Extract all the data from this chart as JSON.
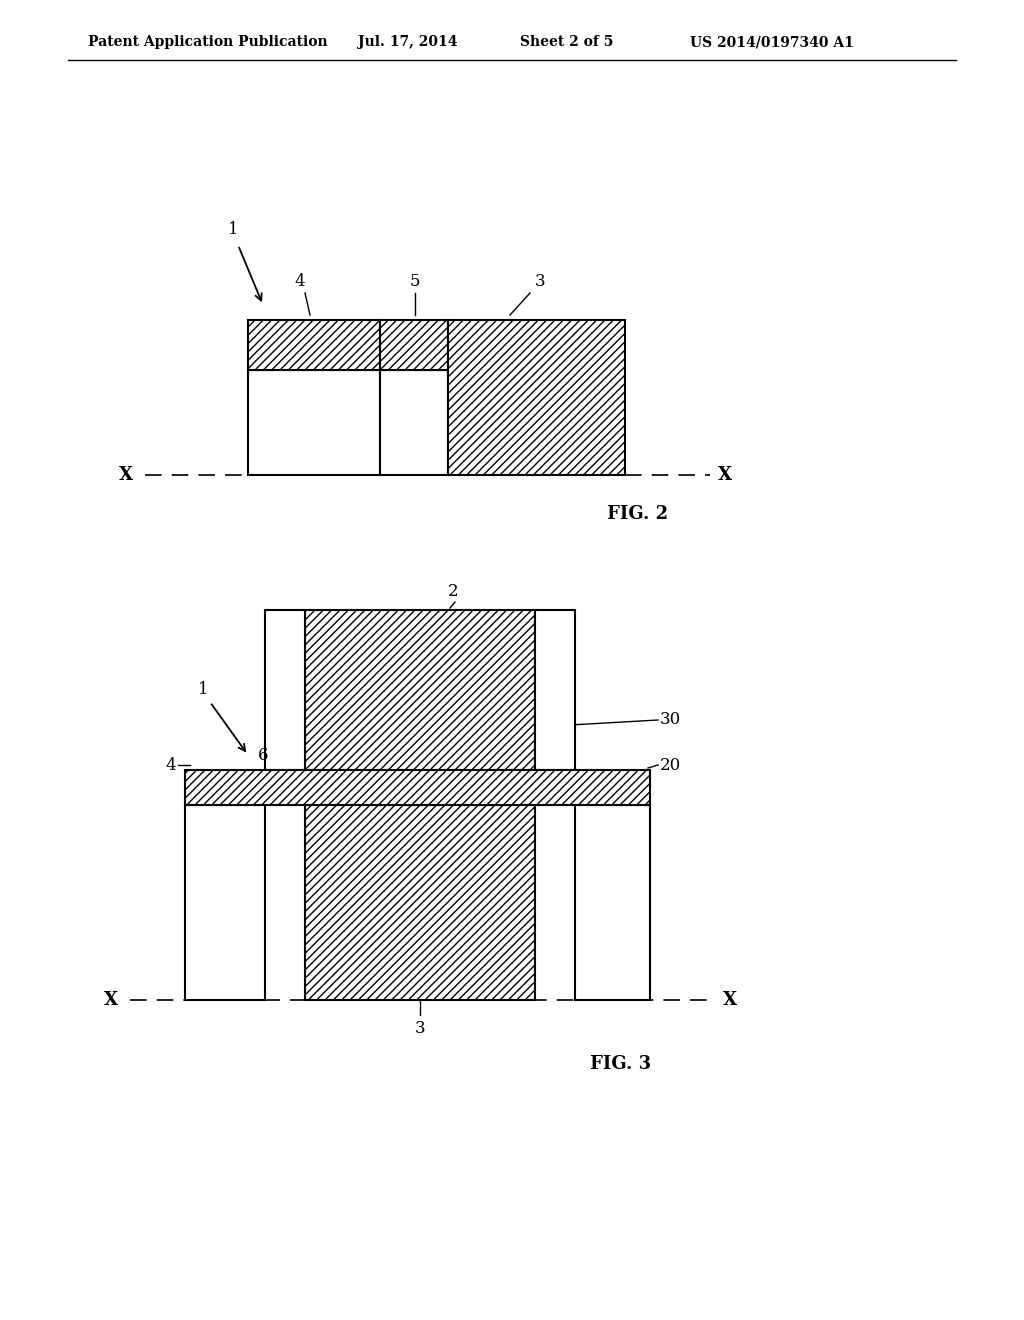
{
  "background_color": "#ffffff",
  "header_text": "Patent Application Publication",
  "header_date": "Jul. 17, 2014",
  "header_sheet": "Sheet 2 of 5",
  "header_patent": "US 2014/0197340 A1",
  "fig2_label": "FIG. 2",
  "fig3_label": "FIG. 3",
  "line_color": "#000000",
  "hatch_pattern": "////"
}
